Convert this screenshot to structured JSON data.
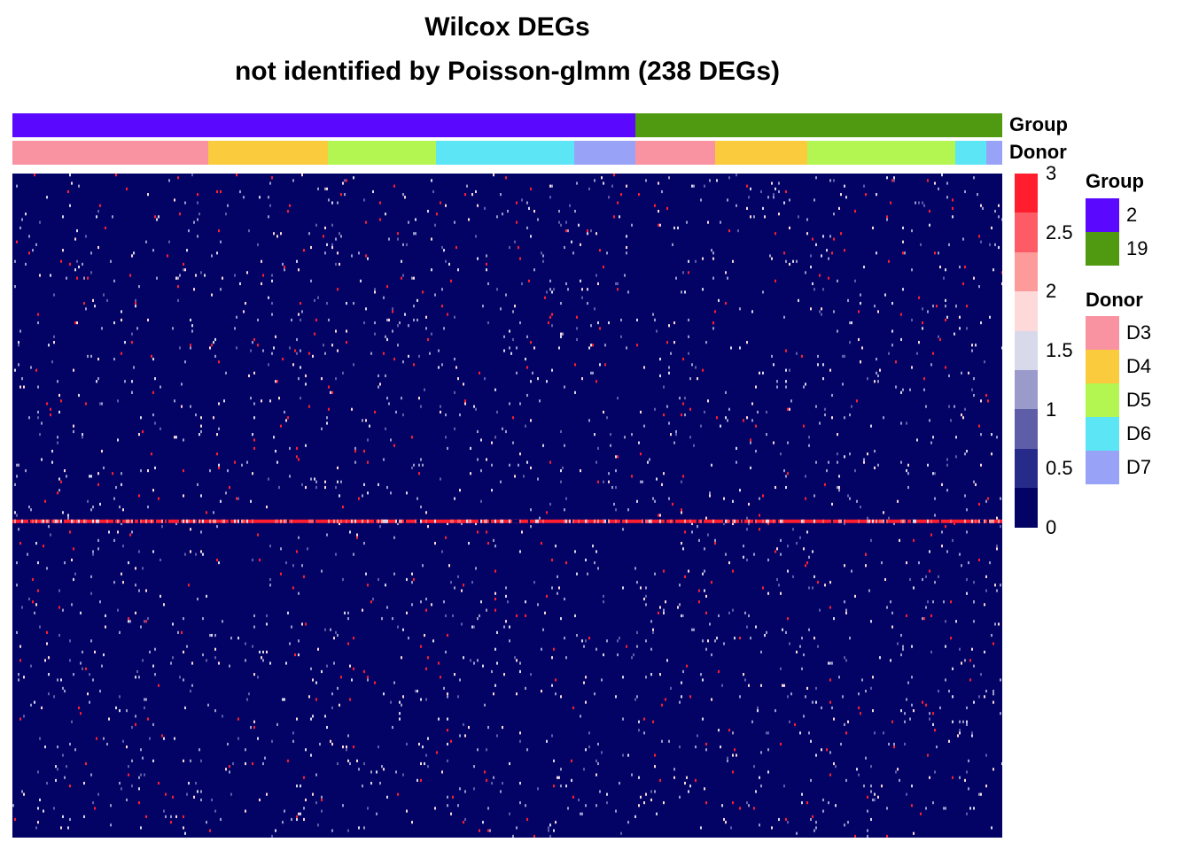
{
  "title": "Wilcox DEGs",
  "subtitle": "not identified by Poisson-glmm (238 DEGs)",
  "annotation_labels": {
    "group": "Group",
    "donor": "Donor"
  },
  "colors": {
    "group": {
      "2": "#5b08ff",
      "19": "#4f9a10"
    },
    "donor": {
      "D3": "#f993a1",
      "D4": "#facb3c",
      "D5": "#b3f551",
      "D6": "#5ce6f5",
      "D7": "#98a3f7"
    },
    "scale": [
      "#030366",
      "#262a88",
      "#5e5ea8",
      "#9b9bcb",
      "#d9d9ec",
      "#fdd9d9",
      "#fd9a9a",
      "#fd5b65",
      "#ff1d2e"
    ]
  },
  "legend": {
    "group_title": "Group",
    "group_items": [
      "2",
      "19"
    ],
    "donor_title": "Donor",
    "donor_items": [
      "D3",
      "D4",
      "D5",
      "D6",
      "D7"
    ]
  },
  "chart_data": {
    "type": "heatmap",
    "title": "Wilcox DEGs",
    "subtitle": "not identified by Poisson-glmm (238 DEGs)",
    "rows": 238,
    "color_scale": {
      "min": 0,
      "max": 3,
      "ticks": [
        "3",
        "2.5",
        "2",
        "1.5",
        "1",
        "0.5",
        "0"
      ]
    },
    "column_annotations": {
      "group": [
        {
          "label": "2",
          "fraction": 0.629
        },
        {
          "label": "19",
          "fraction": 0.371
        }
      ],
      "donor": [
        {
          "label": "D3",
          "fraction": 0.198
        },
        {
          "label": "D4",
          "fraction": 0.121
        },
        {
          "label": "D5",
          "fraction": 0.109
        },
        {
          "label": "D6",
          "fraction": 0.14
        },
        {
          "label": "D7",
          "fraction": 0.061
        },
        {
          "label": "D3",
          "fraction": 0.081
        },
        {
          "label": "D4",
          "fraction": 0.093
        },
        {
          "label": "D5",
          "fraction": 0.15
        },
        {
          "label": "D6",
          "fraction": 0.031
        },
        {
          "label": "D7",
          "fraction": 0.016
        }
      ]
    },
    "background_value": 0,
    "highlight_row": {
      "index": 124,
      "value": 3
    }
  }
}
